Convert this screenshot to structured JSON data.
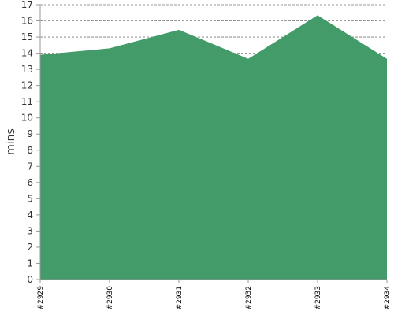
{
  "chart_data": {
    "type": "area",
    "categories": [
      "#2929",
      "#2930",
      "#2931",
      "#2932",
      "#2933",
      "#2934"
    ],
    "values": [
      13.9,
      14.3,
      15.45,
      13.65,
      16.35,
      13.65
    ],
    "ylabel": "mins",
    "xlabel": "",
    "title": "",
    "ylim": [
      0,
      17
    ],
    "yticks": [
      0,
      1,
      2,
      3,
      4,
      5,
      6,
      7,
      8,
      9,
      10,
      11,
      12,
      13,
      14,
      15,
      16,
      17
    ],
    "grid": true,
    "grid_style": "dashed",
    "fill_color": "#449b6a",
    "legend": "none"
  }
}
